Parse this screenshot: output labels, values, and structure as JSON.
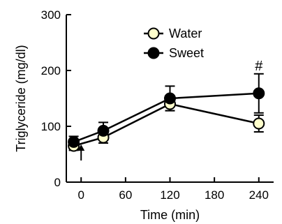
{
  "chart_data": {
    "type": "line",
    "title": "",
    "xlabel": "Time (min)",
    "ylabel": "Triglyceride (mg/dl)",
    "xlim": [
      -20,
      260
    ],
    "ylim": [
      0,
      300
    ],
    "x_ticks": [
      0,
      60,
      120,
      180,
      240
    ],
    "y_ticks": [
      0,
      100,
      200,
      300
    ],
    "grid": false,
    "legend_position": "top-center",
    "series": [
      {
        "name": "Water",
        "marker": "open-circle",
        "marker_fill": "#ffffcc",
        "line_color": "#000000",
        "x": [
          -10,
          30,
          120,
          240
        ],
        "y": [
          65,
          80,
          140,
          105
        ],
        "error": [
          8,
          10,
          12,
          15
        ]
      },
      {
        "name": "Sweet",
        "marker": "filled-circle",
        "marker_fill": "#000000",
        "line_color": "#000000",
        "x": [
          -10,
          30,
          120,
          240
        ],
        "y": [
          72,
          92,
          150,
          159
        ],
        "error": [
          10,
          15,
          22,
          35
        ]
      }
    ],
    "annotations": [
      {
        "type": "arrow",
        "x": 0
      },
      {
        "type": "text",
        "text": "#",
        "x": 240,
        "y": 210
      }
    ]
  }
}
